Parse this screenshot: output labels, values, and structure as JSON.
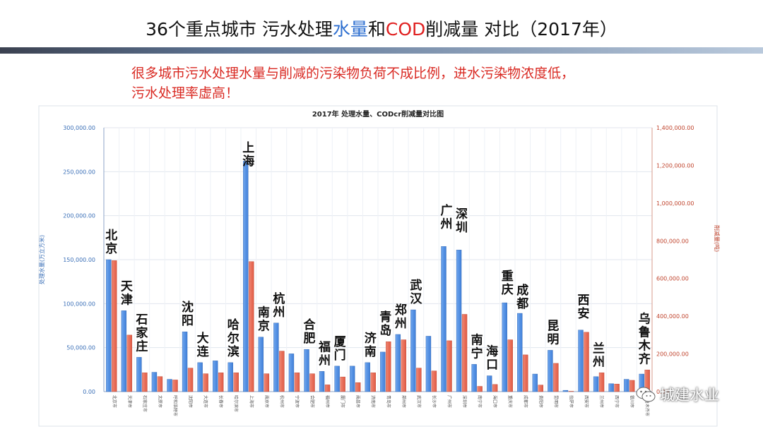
{
  "slide": {
    "title_part1": "36个重点城市 污水处理",
    "title_highlight1": "水量",
    "title_part2": "和",
    "title_highlight2": "COD",
    "title_part3": "削减量 对比（2017年）",
    "title_highlight1_color": "#2e6fd0",
    "title_highlight2_color": "#e02020",
    "subtitle_line1": "很多城市污水处理水量与削减的污染物负荷不成比例，进水污染物浓度低，",
    "subtitle_line2": "污水处理率虚高！",
    "watermark": "城建水业",
    "watermark_icon": "wechat-icon"
  },
  "chart_data": {
    "type": "bar",
    "title": "2017年 处理水量、CODcr削减量对比图",
    "ylabel_left": "处理水量(万立方米)",
    "ylabel_right": "削减量(吨)",
    "ylim_left": [
      0,
      300000
    ],
    "ylim_right": [
      0,
      1400000
    ],
    "yticks_left": [
      "0.00",
      "50,000.00",
      "100,000.00",
      "150,000.00",
      "200,000.00",
      "250,000.00",
      "300,000.00"
    ],
    "yticks_right": [
      "0.00",
      "200,000.00",
      "400,000.00",
      "600,000.00",
      "800,000.00",
      "1,000,000.00",
      "1,200,000.00",
      "1,400,000.00"
    ],
    "grid": true,
    "colors": {
      "water": "#3f7fd9",
      "cod": "#e05a44"
    },
    "categories": [
      "北京市",
      "天津市",
      "石家庄市",
      "太原市",
      "呼和浩特市",
      "沈阳市",
      "大连市",
      "长春市",
      "哈尔滨市",
      "上海市",
      "南京市",
      "杭州市",
      "宁波市",
      "合肥市",
      "福州市",
      "厦门市",
      "南昌市",
      "济南市",
      "青岛市",
      "郑州市",
      "武汉市",
      "长沙市",
      "广州市",
      "深圳市",
      "南宁市",
      "海口市",
      "重庆市",
      "成都市",
      "贵阳市",
      "昆明市",
      "拉萨市",
      "西安市",
      "兰州市",
      "西宁市",
      "银川市",
      "乌鲁木齐市"
    ],
    "series": [
      {
        "values": [
          150000,
          92000,
          39000,
          22000,
          14000,
          68000,
          33000,
          35000,
          33000,
          262000,
          62000,
          78000,
          43000,
          48000,
          23000,
          29000,
          29000,
          33000,
          45000,
          65000,
          93000,
          63000,
          165000,
          161000,
          31000,
          18000,
          101000,
          89000,
          20000,
          47000,
          1500,
          70000,
          17000,
          9000,
          14000,
          20000
        ]
      },
      {
        "values": [
          695000,
          300000,
          100000,
          80000,
          62000,
          125000,
          95000,
          100000,
          100000,
          690000,
          95000,
          215000,
          100000,
          95000,
          36000,
          78000,
          48000,
          100000,
          265000,
          275000,
          125000,
          110000,
          270000,
          410000,
          28000,
          38000,
          275000,
          195000,
          35000,
          150000,
          2000,
          315000,
          100000,
          40000,
          60000,
          115000
        ]
      }
    ],
    "annotations": [
      "北京",
      "天津",
      "石家庄",
      "哈尔滨",
      "沈阳",
      "大连",
      "上海",
      "南京",
      "杭州",
      "合肥",
      "福州",
      "厦门",
      "济南",
      "青岛",
      "郑州",
      "武汉",
      "广州",
      "深圳",
      "南宁",
      "海口",
      "重庆",
      "成都",
      "昆明",
      "西安",
      "兰州",
      "乌鲁木齐"
    ]
  }
}
